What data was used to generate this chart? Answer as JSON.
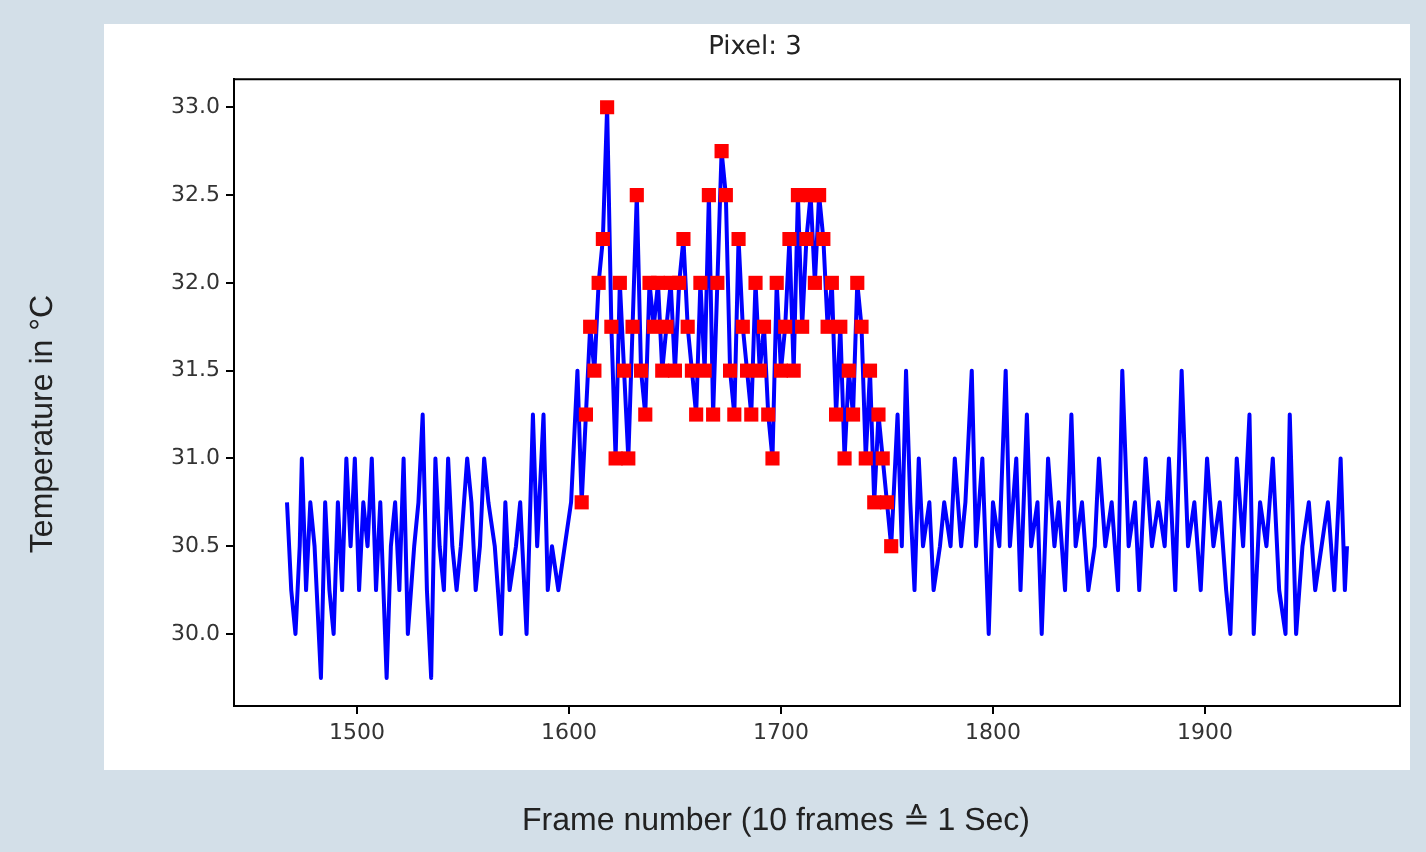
{
  "chart_data": {
    "type": "line",
    "title": "Pixel: 3",
    "xlabel": "Frame number (10 frames ≙ 1 Sec)",
    "ylabel": "Temperature in °C",
    "xlim": [
      1442,
      1992
    ],
    "xticks": [
      1500,
      1600,
      1700,
      1800,
      1900
    ],
    "ylim": [
      29.59,
      33.16
    ],
    "yticks": [
      {
        "value": 30,
        "label": "30.0"
      },
      {
        "value": 30.5,
        "label": "30.5"
      },
      {
        "value": 31,
        "label": "31.0"
      },
      {
        "value": 31.5,
        "label": "31.5"
      },
      {
        "value": 32,
        "label": "32.0"
      },
      {
        "value": 32.5,
        "label": "32.5"
      },
      {
        "value": 33,
        "label": "33.0"
      }
    ],
    "series": [
      {
        "type": "line",
        "color": "#0000ff",
        "marker": "none",
        "x": [
          1467,
          1469,
          1471,
          1473,
          1474,
          1476,
          1478,
          1480,
          1483,
          1485,
          1487,
          1489,
          1491,
          1493,
          1495,
          1497,
          1499,
          1501,
          1503,
          1505,
          1507,
          1509,
          1511,
          1514,
          1516,
          1518,
          1520,
          1522,
          1524,
          1527,
          1529,
          1531,
          1533,
          1535,
          1537,
          1539,
          1541,
          1543,
          1545,
          1547,
          1549,
          1552,
          1554,
          1556,
          1558,
          1560,
          1562,
          1565,
          1568,
          1570,
          1572,
          1575,
          1577,
          1580,
          1583,
          1585,
          1588,
          1590,
          1592,
          1595,
          1598,
          1601,
          1604,
          1606,
          1608,
          1610,
          1612,
          1614,
          1616,
          1618,
          1620,
          1622,
          1624,
          1626,
          1628,
          1630,
          1632,
          1634,
          1636,
          1638,
          1640,
          1642,
          1644,
          1646,
          1648,
          1650,
          1652,
          1654,
          1656,
          1658,
          1660,
          1662,
          1664,
          1666,
          1668,
          1670,
          1672,
          1674,
          1676,
          1678,
          1680,
          1682,
          1684,
          1686,
          1688,
          1690,
          1692,
          1694,
          1696,
          1698,
          1700,
          1702,
          1704,
          1706,
          1708,
          1710,
          1712,
          1714,
          1716,
          1718,
          1720,
          1722,
          1724,
          1726,
          1728,
          1730,
          1732,
          1734,
          1736,
          1738,
          1740,
          1742,
          1744,
          1746,
          1748,
          1750,
          1752,
          1755,
          1757,
          1759,
          1761,
          1763,
          1765,
          1767,
          1770,
          1772,
          1775,
          1777,
          1780,
          1782,
          1785,
          1787,
          1790,
          1792,
          1795,
          1798,
          1800,
          1803,
          1806,
          1808,
          1811,
          1813,
          1816,
          1818,
          1821,
          1823,
          1826,
          1829,
          1831,
          1834,
          1837,
          1839,
          1842,
          1845,
          1848,
          1850,
          1853,
          1856,
          1859,
          1861,
          1864,
          1867,
          1869,
          1872,
          1875,
          1878,
          1881,
          1883,
          1886,
          1889,
          1892,
          1895,
          1898,
          1901,
          1904,
          1907,
          1910,
          1912,
          1915,
          1918,
          1921,
          1923,
          1926,
          1929,
          1932,
          1935,
          1938,
          1940,
          1943,
          1946,
          1949,
          1952,
          1955,
          1958,
          1961,
          1964,
          1966,
          1967
        ],
        "values": [
          30.75,
          30.25,
          30.0,
          30.5,
          31.0,
          30.25,
          30.75,
          30.5,
          29.75,
          30.75,
          30.25,
          30.0,
          30.75,
          30.25,
          31.0,
          30.5,
          31.0,
          30.25,
          30.75,
          30.5,
          31.0,
          30.25,
          30.75,
          29.75,
          30.5,
          30.75,
          30.25,
          31.0,
          30.0,
          30.5,
          30.75,
          31.25,
          30.25,
          29.75,
          31.0,
          30.5,
          30.25,
          31.0,
          30.5,
          30.25,
          30.5,
          31.0,
          30.75,
          30.25,
          30.5,
          31.0,
          30.75,
          30.5,
          30.0,
          30.75,
          30.25,
          30.5,
          30.75,
          30.0,
          31.25,
          30.5,
          31.25,
          30.25,
          30.5,
          30.25,
          30.5,
          30.75,
          31.5,
          30.75,
          31.25,
          31.75,
          31.5,
          32.0,
          32.25,
          33.0,
          31.75,
          31.0,
          32.0,
          31.5,
          31.0,
          31.75,
          32.5,
          31.5,
          31.25,
          32.0,
          31.75,
          32.0,
          31.5,
          31.75,
          32.0,
          31.5,
          32.0,
          32.25,
          31.75,
          31.5,
          31.25,
          32.0,
          31.5,
          32.5,
          31.25,
          32.0,
          32.75,
          32.5,
          31.5,
          31.25,
          32.25,
          31.75,
          31.5,
          31.25,
          32.0,
          31.5,
          31.75,
          31.25,
          31.0,
          32.0,
          31.5,
          31.75,
          32.25,
          31.5,
          32.5,
          31.75,
          32.25,
          32.5,
          32.0,
          32.5,
          32.25,
          31.75,
          32.0,
          31.25,
          31.75,
          31.0,
          31.5,
          31.25,
          32.0,
          31.75,
          31.0,
          31.5,
          30.75,
          31.25,
          31.0,
          30.75,
          30.5,
          31.25,
          30.5,
          31.5,
          30.75,
          30.25,
          31.0,
          30.5,
          30.75,
          30.25,
          30.5,
          30.75,
          30.5,
          31.0,
          30.5,
          30.75,
          31.5,
          30.5,
          31.0,
          30.0,
          30.75,
          30.5,
          31.5,
          30.5,
          31.0,
          30.25,
          31.25,
          30.5,
          30.75,
          30.0,
          31.0,
          30.5,
          30.75,
          30.25,
          31.25,
          30.5,
          30.75,
          30.25,
          30.5,
          31.0,
          30.5,
          30.75,
          30.25,
          31.5,
          30.5,
          30.75,
          30.25,
          31.0,
          30.5,
          30.75,
          30.5,
          31.0,
          30.25,
          31.5,
          30.5,
          30.75,
          30.25,
          31.0,
          30.5,
          30.75,
          30.25,
          30.0,
          31.0,
          30.5,
          31.25,
          30.0,
          30.75,
          30.5,
          31.0,
          30.25,
          30.0,
          31.25,
          30.0,
          30.5,
          30.75,
          30.25,
          30.5,
          30.75,
          30.25,
          31.0,
          30.25,
          30.5
        ]
      },
      {
        "type": "scatter",
        "color": "#ff0000",
        "marker": "square",
        "x": [
          1606,
          1608,
          1610,
          1612,
          1614,
          1616,
          1618,
          1620,
          1622,
          1624,
          1626,
          1628,
          1630,
          1632,
          1634,
          1636,
          1638,
          1640,
          1642,
          1644,
          1646,
          1648,
          1650,
          1652,
          1654,
          1656,
          1658,
          1660,
          1662,
          1664,
          1666,
          1668,
          1670,
          1672,
          1674,
          1676,
          1678,
          1680,
          1682,
          1684,
          1686,
          1688,
          1690,
          1692,
          1694,
          1696,
          1698,
          1700,
          1702,
          1704,
          1706,
          1708,
          1710,
          1712,
          1714,
          1716,
          1718,
          1720,
          1722,
          1724,
          1726,
          1728,
          1730,
          1732,
          1734,
          1736,
          1738,
          1740,
          1742,
          1744,
          1746,
          1748,
          1750,
          1752
        ],
        "values": [
          30.75,
          31.25,
          31.75,
          31.5,
          32.0,
          32.25,
          33.0,
          31.75,
          31.0,
          32.0,
          31.5,
          31.0,
          31.75,
          32.5,
          31.5,
          31.25,
          32.0,
          31.75,
          32.0,
          31.5,
          31.75,
          32.0,
          31.5,
          32.0,
          32.25,
          31.75,
          31.5,
          31.25,
          32.0,
          31.5,
          32.5,
          31.25,
          32.0,
          32.75,
          32.5,
          31.5,
          31.25,
          32.25,
          31.75,
          31.5,
          31.25,
          32.0,
          31.5,
          31.75,
          31.25,
          31.0,
          32.0,
          31.5,
          31.75,
          32.25,
          31.5,
          32.5,
          31.75,
          32.25,
          32.5,
          32.0,
          32.5,
          32.25,
          31.75,
          32.0,
          31.25,
          31.75,
          31.0,
          31.5,
          31.25,
          32.0,
          31.75,
          31.0,
          31.5,
          30.75,
          31.25,
          31.0,
          30.75,
          30.5
        ]
      }
    ]
  }
}
